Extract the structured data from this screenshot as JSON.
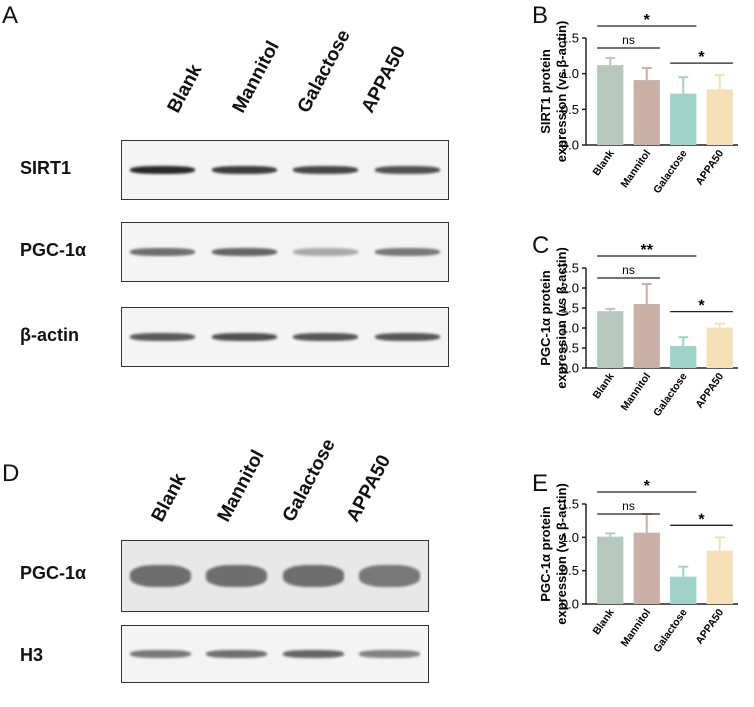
{
  "panels": {
    "A": "A",
    "B": "B",
    "C": "C",
    "D": "D",
    "E": "E"
  },
  "lanes": [
    "Blank",
    "Mannitol",
    "Galactose",
    "APPA50"
  ],
  "blots": {
    "A": [
      {
        "label": "SIRT1",
        "intensity": [
          0.95,
          0.85,
          0.8,
          0.75
        ]
      },
      {
        "label": "PGC-1α",
        "intensity": [
          0.6,
          0.65,
          0.3,
          0.55
        ]
      },
      {
        "label": "β-actin",
        "intensity": [
          0.7,
          0.75,
          0.72,
          0.72
        ]
      }
    ],
    "D": [
      {
        "label": "PGC-1α",
        "intensity": [
          0.6,
          0.6,
          0.6,
          0.55
        ]
      },
      {
        "label": "H3",
        "intensity": [
          0.55,
          0.6,
          0.65,
          0.5
        ]
      }
    ]
  },
  "colors": {
    "Blank": "#b5c8bb",
    "Mannitol": "#c9b0a6",
    "Galactose": "#9fd3ca",
    "APPA50": "#f5dfb6"
  },
  "chart_data": [
    {
      "panel": "B",
      "type": "bar",
      "categories": [
        "Blank",
        "Mannitol",
        "Galactose",
        "APPA50"
      ],
      "values": [
        1.12,
        0.91,
        0.72,
        0.78
      ],
      "errors": [
        0.1,
        0.17,
        0.23,
        0.2
      ],
      "ylabel": [
        "SIRT1 protein",
        "expression  (vs β-actin)"
      ],
      "ylim": [
        0,
        1.5
      ],
      "yticks": [
        "0.0",
        "0.5",
        "1.0",
        "1.5"
      ],
      "significance": [
        {
          "from": 0,
          "to": 1,
          "label": "ns"
        },
        {
          "from": 0,
          "to": 2,
          "label": "*"
        },
        {
          "from": 2,
          "to": 3,
          "label": "*"
        }
      ]
    },
    {
      "panel": "C",
      "type": "bar",
      "categories": [
        "Blank",
        "Mannitol",
        "Galactose",
        "APPA50"
      ],
      "values": [
        1.42,
        1.6,
        0.55,
        1.01
      ],
      "errors": [
        0.06,
        0.5,
        0.22,
        0.1
      ],
      "ylabel": [
        "PGC-1α protein",
        "expression  (vs β-actin)"
      ],
      "ylim": [
        0,
        2.5
      ],
      "yticks": [
        "0.0",
        "0.5",
        "1.0",
        "1.5",
        "2.0",
        "2.5"
      ],
      "significance": [
        {
          "from": 0,
          "to": 1,
          "label": "ns"
        },
        {
          "from": 0,
          "to": 2,
          "label": "**"
        },
        {
          "from": 2,
          "to": 3,
          "label": "*"
        }
      ]
    },
    {
      "panel": "E",
      "type": "bar",
      "categories": [
        "Blank",
        "Mannitol",
        "Galactose",
        "APPA50"
      ],
      "values": [
        1.01,
        1.07,
        0.41,
        0.8
      ],
      "errors": [
        0.05,
        0.28,
        0.15,
        0.2
      ],
      "ylabel": [
        "PGC-1α protein",
        "expression  (vs β-actin)"
      ],
      "ylim": [
        0,
        1.5
      ],
      "yticks": [
        "0.0",
        "0.5",
        "1.0",
        "1.5"
      ],
      "significance": [
        {
          "from": 0,
          "to": 1,
          "label": "ns"
        },
        {
          "from": 0,
          "to": 2,
          "label": "*"
        },
        {
          "from": 2,
          "to": 3,
          "label": "*"
        }
      ]
    }
  ]
}
